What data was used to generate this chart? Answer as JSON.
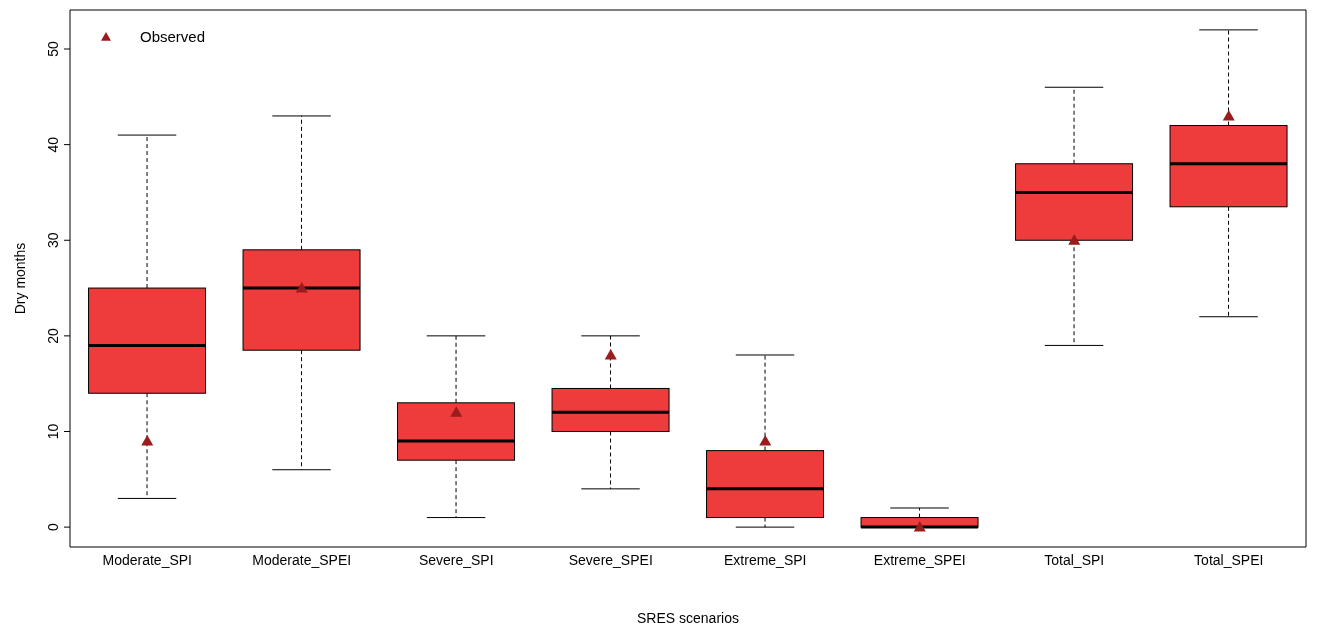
{
  "chart_data": {
    "type": "box",
    "xlabel": "SRES scenarios",
    "ylabel": "Dry months",
    "categories": [
      "Moderate_SPI",
      "Moderate_SPEI",
      "Severe_SPI",
      "Severe_SPEI",
      "Extreme_SPI",
      "Extreme_SPEI",
      "Total_SPI",
      "Total_SPEI"
    ],
    "color": "#ee3b3b",
    "boxes": [
      {
        "low": 3,
        "q1": 14,
        "median": 19,
        "q3": 25,
        "high": 41
      },
      {
        "low": 6,
        "q1": 18.5,
        "median": 25,
        "q3": 29,
        "high": 43
      },
      {
        "low": 1,
        "q1": 7,
        "median": 9,
        "q3": 13,
        "high": 20
      },
      {
        "low": 4,
        "q1": 10,
        "median": 12,
        "q3": 14.5,
        "high": 20
      },
      {
        "low": 0,
        "q1": 1,
        "median": 4,
        "q3": 8,
        "high": 18
      },
      {
        "low": 0,
        "q1": 0,
        "median": 0,
        "q3": 1,
        "high": 2
      },
      {
        "low": 19,
        "q1": 30,
        "median": 35,
        "q3": 38,
        "high": 46
      },
      {
        "low": 22,
        "q1": 33.5,
        "median": 38,
        "q3": 42,
        "high": 52
      }
    ],
    "series": [
      {
        "name": "Observed",
        "type": "scatter",
        "color": "#9b1c1c",
        "x": [
          "Moderate_SPI",
          "Moderate_SPEI",
          "Severe_SPI",
          "Severe_SPEI",
          "Extreme_SPI",
          "Extreme_SPEI",
          "Total_SPI",
          "Total_SPEI"
        ],
        "values": [
          9,
          25,
          12,
          18,
          9,
          0,
          30,
          43
        ]
      }
    ],
    "ylim": [
      -2.08,
      54.08
    ],
    "yticks": [
      0,
      10,
      20,
      30,
      40,
      50
    ],
    "legend": "top left",
    "marker": "triangle",
    "grid": false
  }
}
